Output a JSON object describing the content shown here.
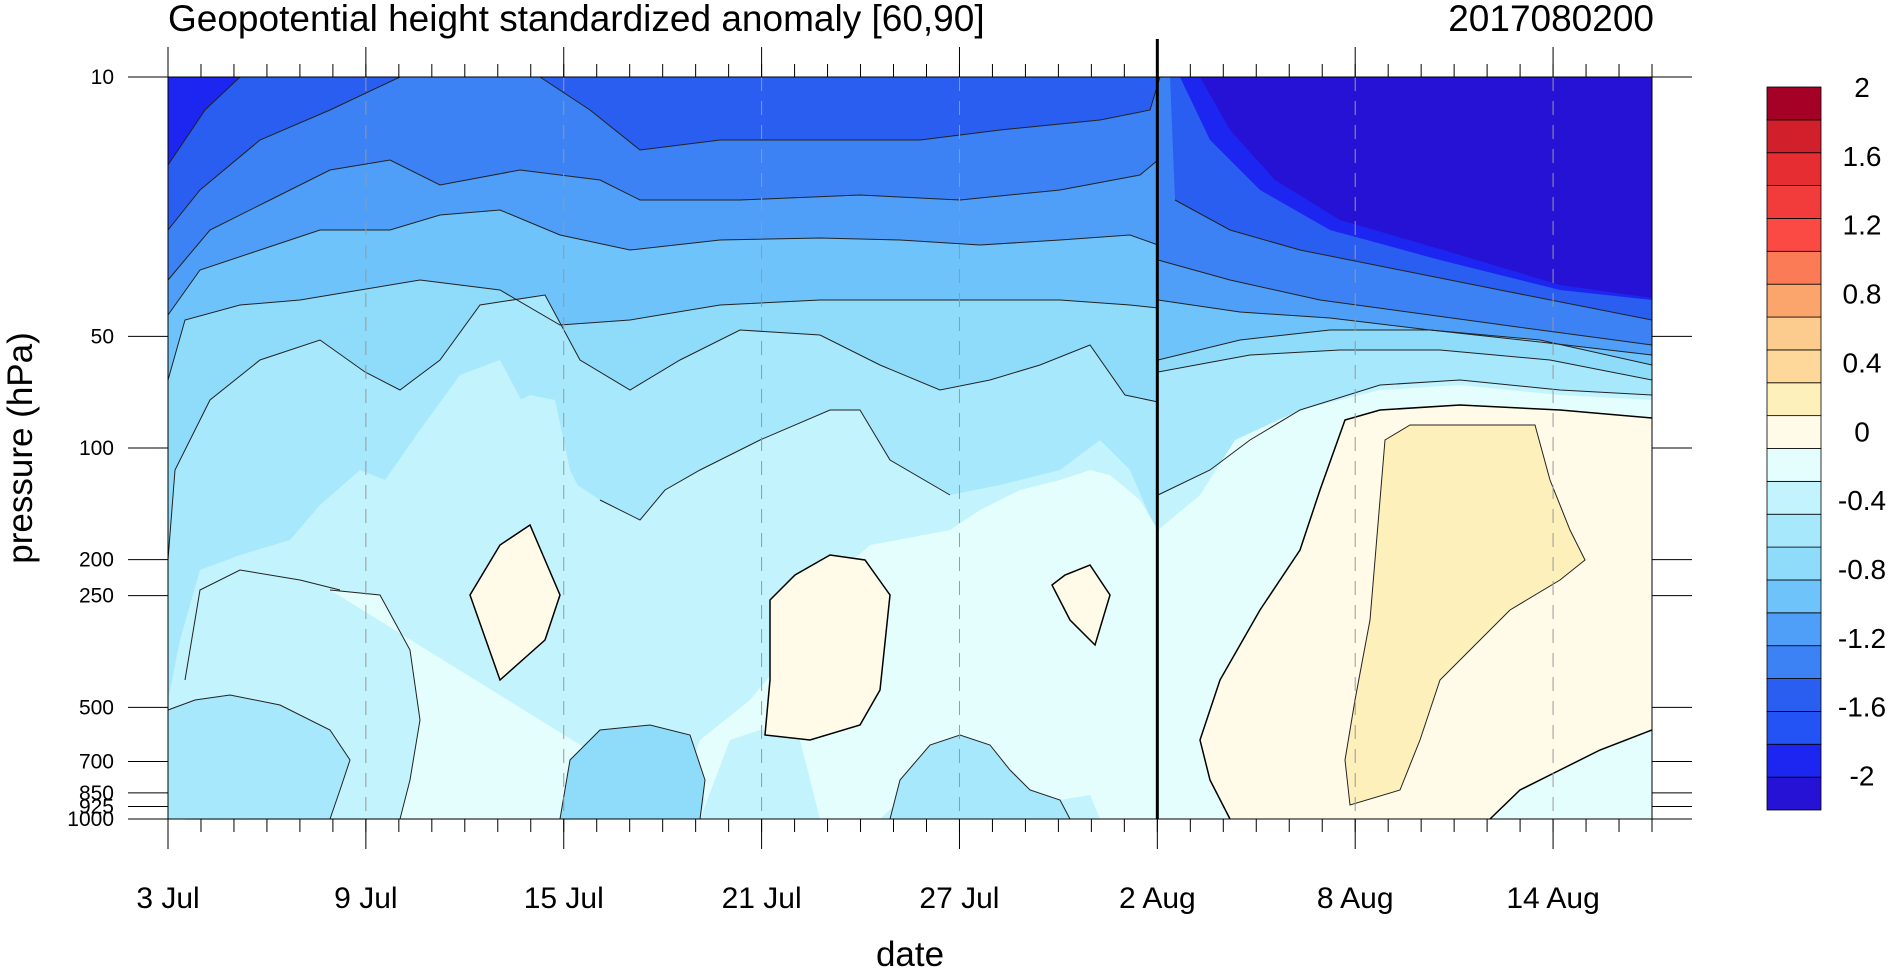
{
  "chart_data": {
    "type": "heatmap",
    "title": "Geopotential height standardized anomaly [60,90]",
    "right_title": "2017080200",
    "xlabel": "date",
    "ylabel": "pressure (hPa)",
    "x_range": [
      "2017-07-03",
      "2017-08-17"
    ],
    "y_scale": "log",
    "y_range_hPa": [
      1000,
      10
    ],
    "x_ticks": [
      {
        "date": "2017-07-03",
        "label": "3 Jul"
      },
      {
        "date": "2017-07-09",
        "label": "9 Jul"
      },
      {
        "date": "2017-07-15",
        "label": "15 Jul"
      },
      {
        "date": "2017-07-21",
        "label": "21 Jul"
      },
      {
        "date": "2017-07-27",
        "label": "27 Jul"
      },
      {
        "date": "2017-08-02",
        "label": "2 Aug"
      },
      {
        "date": "2017-08-08",
        "label": "8 Aug"
      },
      {
        "date": "2017-08-14",
        "label": "14 Aug"
      }
    ],
    "y_ticks": [
      10,
      50,
      100,
      200,
      250,
      500,
      700,
      850,
      925,
      1000
    ],
    "analysis_date_line": "2017-08-02",
    "colorbar": {
      "levels": [
        -2.2,
        -2.0,
        -1.8,
        -1.6,
        -1.4,
        -1.2,
        -1.0,
        -0.8,
        -0.6,
        -0.4,
        -0.2,
        0,
        0.2,
        0.4,
        0.6,
        0.8,
        1.0,
        1.2,
        1.4,
        1.6,
        1.8,
        2.0
      ],
      "colors": [
        "#2612d4",
        "#1c26f0",
        "#2352f5",
        "#2a5ef0",
        "#3c82f5",
        "#4f9ff8",
        "#6ec3fa",
        "#8edcfa",
        "#a7e8fc",
        "#c3f3fc",
        "#e4fdfd",
        "#fffbe8",
        "#fdf0bb",
        "#fdd89a",
        "#fccb8e",
        "#fba46c",
        "#fb7b57",
        "#fa4a43",
        "#f23c3c",
        "#e52d32",
        "#d11f2c",
        "#a50026"
      ],
      "tick_labels": [
        "-2",
        "-1.6",
        "-1.2",
        "-0.8",
        "-0.4",
        "0",
        "0.4",
        "0.8",
        "1.2",
        "1.6",
        "2"
      ]
    }
  }
}
